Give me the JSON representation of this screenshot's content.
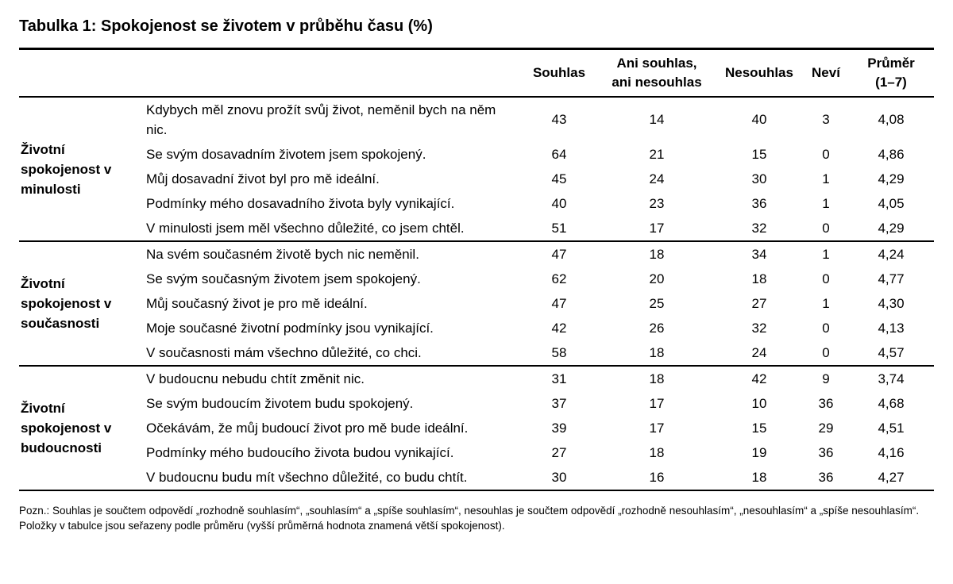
{
  "title": "Tabulka 1: Spokojenost se životem v průběhu času (%)",
  "table": {
    "headers": {
      "souhlas": "Souhlas",
      "ani": "Ani souhlas,\nani nesouhlas",
      "nesouhlas": "Nesouhlas",
      "nevi": "Neví",
      "prumer": "Průměr\n(1–7)"
    },
    "value_keys": [
      "souhlas",
      "ani",
      "nesouhlas",
      "nevi",
      "prumer"
    ],
    "sections": [
      {
        "group": "Životní spokojenost v minulosti",
        "rows": [
          {
            "item": "Kdybych měl znovu prožít svůj život, neměnil bych na něm nic.",
            "values": [
              "43",
              "14",
              "40",
              "3",
              "4,08"
            ]
          },
          {
            "item": "Se svým dosavadním životem jsem spokojený.",
            "values": [
              "64",
              "21",
              "15",
              "0",
              "4,86"
            ]
          },
          {
            "item": "Můj dosavadní život byl pro mě ideální.",
            "values": [
              "45",
              "24",
              "30",
              "1",
              "4,29"
            ]
          },
          {
            "item": "Podmínky mého dosavadního života byly vynikající.",
            "values": [
              "40",
              "23",
              "36",
              "1",
              "4,05"
            ]
          },
          {
            "item": "V minulosti jsem měl všechno důležité, co jsem chtěl.",
            "values": [
              "51",
              "17",
              "32",
              "0",
              "4,29"
            ]
          }
        ]
      },
      {
        "group": "Životní spokojenost v současnosti",
        "rows": [
          {
            "item": "Na svém současném životě bych nic neměnil.",
            "values": [
              "47",
              "18",
              "34",
              "1",
              "4,24"
            ]
          },
          {
            "item": "Se svým současným životem jsem spokojený.",
            "values": [
              "62",
              "20",
              "18",
              "0",
              "4,77"
            ]
          },
          {
            "item": "Můj současný život je pro mě ideální.",
            "values": [
              "47",
              "25",
              "27",
              "1",
              "4,30"
            ]
          },
          {
            "item": "Moje současné životní podmínky jsou vynikající.",
            "values": [
              "42",
              "26",
              "32",
              "0",
              "4,13"
            ]
          },
          {
            "item": "V současnosti mám všechno důležité, co chci.",
            "values": [
              "58",
              "18",
              "24",
              "0",
              "4,57"
            ]
          }
        ]
      },
      {
        "group": "Životní spokojenost v budoucnosti",
        "rows": [
          {
            "item": "V budoucnu nebudu chtít změnit nic.",
            "values": [
              "31",
              "18",
              "42",
              "9",
              "3,74"
            ]
          },
          {
            "item": "Se svým budoucím životem budu spokojený.",
            "values": [
              "37",
              "17",
              "10",
              "36",
              "4,68"
            ]
          },
          {
            "item": "Očekávám, že můj budoucí život pro mě bude ideální.",
            "values": [
              "39",
              "17",
              "15",
              "29",
              "4,51"
            ]
          },
          {
            "item": "Podmínky mého budoucího života budou vynikající.",
            "values": [
              "27",
              "18",
              "19",
              "36",
              "4,16"
            ]
          },
          {
            "item": "V budoucnu budu mít všechno důležité, co budu chtít.",
            "values": [
              "30",
              "16",
              "18",
              "36",
              "4,27"
            ]
          }
        ]
      }
    ]
  },
  "note": "Pozn.: Souhlas je součtem odpovědí „rozhodně souhlasím“, „souhlasím“ a „spíše souhlasím“, nesouhlas je součtem odpovědí „rozhodně nesouhlasím“, „nesouhlasím“ a „spíše nesouhlasím“. Položky v tabulce jsou seřazeny podle průměru (vyšší průměrná hodnota znamená větší spokojenost)."
}
